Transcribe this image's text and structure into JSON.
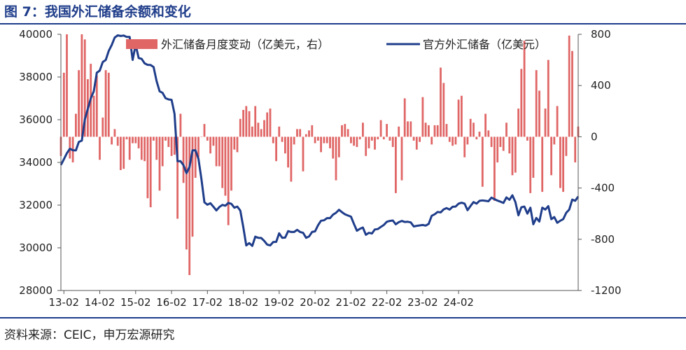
{
  "title": "图 7：我国外汇储备余额和变化",
  "source": "资料来源：CEIC，申万宏源研究",
  "chart_data": {
    "type": "bar+line",
    "title": "图 7：我国外汇储备余额和变化",
    "x_tick_labels": [
      "13-02",
      "14-02",
      "15-02",
      "16-02",
      "17-02",
      "18-02",
      "19-02",
      "20-02",
      "21-02",
      "22-02",
      "23-02",
      "24-02"
    ],
    "x_start": "2013-01",
    "x_end": "2024-02",
    "left_axis": {
      "min": 28000,
      "max": 40000,
      "ticks": [
        28000,
        30000,
        32000,
        34000,
        36000,
        38000,
        40000
      ]
    },
    "right_axis": {
      "min": -1200,
      "max": 800,
      "ticks": [
        800,
        400,
        0,
        -400,
        -800,
        -1200
      ]
    },
    "legend": "top",
    "series": [
      {
        "name": "外汇储备月度变动（亿美元，右）",
        "type": "bar",
        "axis": "right",
        "color": "#e06666",
        "values": [
          -150,
          500,
          800,
          -170,
          -200,
          180,
          520,
          800,
          760,
          450,
          570,
          320,
          480,
          -180,
          150,
          520,
          500,
          -60,
          60,
          -70,
          -260,
          -250,
          -20,
          -180,
          -50,
          -50,
          -90,
          -180,
          -190,
          -480,
          -550,
          -30,
          -180,
          -420,
          -230,
          -30,
          -80,
          -150,
          -140,
          -640,
          180,
          -360,
          -880,
          -1080,
          -780,
          -320,
          -160,
          0,
          100,
          -30,
          -130,
          -70,
          -230,
          -230,
          -400,
          -460,
          -690,
          -420,
          -100,
          -120,
          140,
          210,
          240,
          200,
          80,
          240,
          110,
          60,
          130,
          190,
          220,
          -50,
          -190,
          80,
          -40,
          -130,
          -240,
          -350,
          -60,
          60,
          60,
          -270,
          20,
          50,
          90,
          -50,
          -30,
          -120,
          -50,
          -50,
          -90,
          -170,
          -340,
          -160,
          90,
          100,
          60,
          -50,
          -70,
          -80,
          -20,
          110,
          -150,
          -90,
          -30,
          -100,
          -20,
          130,
          -20,
          100,
          -30,
          -80,
          -440,
          80,
          -340,
          300,
          120,
          120,
          -30,
          -100,
          -40,
          310,
          110,
          90,
          -60,
          90,
          90,
          540,
          420,
          100,
          -40,
          -70,
          -60,
          290,
          320,
          -160,
          -60,
          140,
          110,
          -20,
          40,
          -390,
          180,
          50,
          -80,
          -500,
          -200,
          -80,
          -110,
          110,
          -130,
          -300,
          -280,
          220,
          530,
          750,
          -30,
          -440,
          -320,
          520,
          360,
          -430,
          220,
          600,
          -300,
          -60,
          240,
          -400,
          -430,
          -150,
          790,
          670,
          -200,
          80
        ]
      },
      {
        "name": "官方外汇储备（亿美元）",
        "type": "line",
        "axis": "left",
        "color": "#1f3d8a",
        "values": [
          33880,
          34150,
          34430,
          34640,
          34570,
          34560,
          34960,
          35020,
          36010,
          36500,
          37000,
          37330,
          38200,
          38300,
          38700,
          38800,
          39220,
          39500,
          39850,
          39950,
          39920,
          39940,
          39880,
          39880,
          38800,
          39510,
          38890,
          38850,
          38640,
          38570,
          38560,
          38470,
          37810,
          37330,
          37260,
          37010,
          36950,
          36930,
          36280,
          34060,
          34060,
          33870,
          33500,
          33780,
          34560,
          34570,
          34170,
          33210,
          32130,
          32020,
          32090,
          31920,
          31750,
          31910,
          32010,
          31970,
          32100,
          32060,
          31880,
          31930,
          31740,
          30960,
          30110,
          30220,
          30090,
          30520,
          30470,
          30460,
          30320,
          30150,
          30110,
          30270,
          30280,
          30680,
          30470,
          30480,
          30780,
          30740,
          30740,
          30840,
          30740,
          30700,
          30470,
          30530,
          30740,
          30770,
          31060,
          31270,
          31290,
          31390,
          31390,
          31550,
          31640,
          31780,
          31670,
          31570,
          31510,
          31460,
          31120,
          30800,
          30890,
          30950,
          30610,
          30700,
          30670,
          30860,
          30880,
          30980,
          31070,
          31220,
          31260,
          31280,
          31100,
          31200,
          31260,
          31210,
          31220,
          31190,
          31000,
          31030,
          31050,
          31070,
          31040,
          31120,
          31500,
          31570,
          31680,
          31660,
          31800,
          31860,
          31790,
          31920,
          31930,
          32070,
          32110,
          32070,
          31760,
          31960,
          32140,
          32070,
          32200,
          32220,
          32200,
          32180,
          32350,
          32280,
          32210,
          32160,
          32100,
          32360,
          32250,
          32460,
          32140,
          31520,
          31900,
          31930,
          31600,
          31880,
          31100,
          31400,
          31230,
          31880,
          31790,
          31950,
          31340,
          31440,
          31170,
          31270,
          31340,
          31640,
          31790,
          32260,
          32200,
          32400
        ]
      }
    ]
  }
}
